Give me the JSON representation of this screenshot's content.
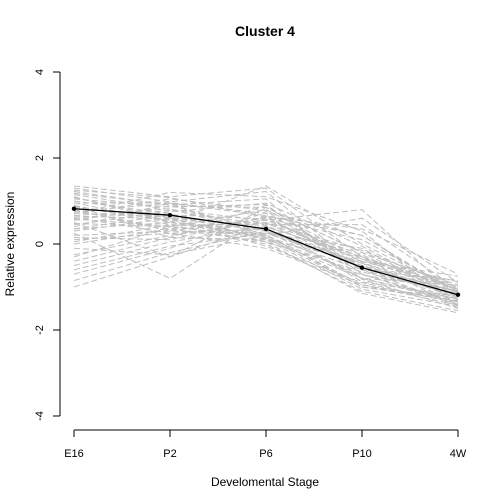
{
  "chart_data": {
    "type": "line",
    "title": "Cluster 4",
    "xlabel": "Develomental Stage",
    "ylabel": "Relative expression",
    "categories": [
      "E16",
      "P2",
      "P6",
      "P10",
      "4W"
    ],
    "ylim": [
      -4,
      4
    ],
    "yticks": [
      -4,
      -2,
      0,
      2,
      4
    ],
    "grid": false,
    "legend": "none",
    "colors": {
      "background_profiles": "#bebebe",
      "centroid": "#000000"
    },
    "series": [
      {
        "values": [
          0.82,
          0.67,
          0.35,
          -0.55,
          -1.18
        ]
      }
    ],
    "background_profiles": [
      [
        1.3,
        0.98,
        1.22,
        -0.6,
        -1.42
      ],
      [
        1.18,
        0.91,
        1.05,
        -0.82,
        -1.5
      ],
      [
        1.05,
        0.86,
        0.92,
        -0.7,
        -1.35
      ],
      [
        0.95,
        0.96,
        0.71,
        -0.42,
        -1.28
      ],
      [
        1.25,
        1.08,
        0.62,
        -0.51,
        -1.2
      ],
      [
        0.88,
        0.55,
        0.48,
        -0.3,
        -1.05
      ],
      [
        0.72,
        0.62,
        0.3,
        -0.55,
        -1.1
      ],
      [
        0.6,
        0.78,
        0.44,
        -0.88,
        -1.22
      ],
      [
        1.1,
        0.52,
        0.2,
        -0.95,
        -1.32
      ],
      [
        0.48,
        0.4,
        0.15,
        -0.72,
        -1.08
      ],
      [
        0.35,
        0.68,
        0.58,
        -0.4,
        -1.0
      ],
      [
        0.78,
        0.35,
        0.05,
        -0.65,
        -1.15
      ],
      [
        1.0,
        0.7,
        0.1,
        -1.05,
        -1.45
      ],
      [
        0.55,
        0.88,
        0.85,
        -0.2,
        -1.25
      ],
      [
        0.9,
        0.45,
        0.38,
        -0.8,
        -0.95
      ],
      [
        0.2,
        0.3,
        0.25,
        -0.5,
        -1.12
      ],
      [
        0.65,
        0.58,
        -0.05,
        -0.9,
        -1.38
      ],
      [
        1.15,
        0.8,
        0.55,
        -0.25,
        -1.3
      ],
      [
        0.4,
        0.95,
        0.66,
        -0.6,
        -1.18
      ],
      [
        0.85,
        0.62,
        0.42,
        -0.35,
        -0.88
      ],
      [
        0.1,
        0.25,
        0.35,
        -0.45,
        -1.05
      ],
      [
        0.7,
        1.05,
        0.78,
        -0.7,
        -1.4
      ],
      [
        0.96,
        0.5,
        0.18,
        -0.6,
        -1.2
      ],
      [
        0.3,
        0.6,
        0.12,
        -0.8,
        -1.28
      ],
      [
        1.22,
        0.9,
        0.3,
        -0.45,
        -1.35
      ],
      [
        0.58,
        0.42,
        0.5,
        -0.15,
        -1.0
      ],
      [
        0.45,
        0.75,
        0.95,
        -0.05,
        -1.22
      ],
      [
        1.35,
        1.1,
        1.3,
        -0.3,
        -1.5
      ],
      [
        0.8,
        0.3,
        0.6,
        0.1,
        -1.1
      ],
      [
        0.66,
        0.82,
        0.22,
        -1.0,
        -1.32
      ],
      [
        -0.25,
        0.2,
        0.5,
        -0.55,
        -1.1
      ],
      [
        -0.5,
        0.05,
        0.4,
        -0.3,
        -1.0
      ],
      [
        -0.7,
        -0.1,
        0.75,
        0.2,
        -1.2
      ],
      [
        -0.85,
        -0.2,
        0.3,
        -0.8,
        -1.35
      ],
      [
        -1.0,
        -0.3,
        0.45,
        0.45,
        -1.05
      ],
      [
        -0.4,
        0.15,
        0.1,
        -0.4,
        -0.75
      ],
      [
        -0.1,
        -0.25,
        0.2,
        0.6,
        -0.9
      ],
      [
        0.0,
        0.35,
        0.55,
        0.8,
        -1.25
      ],
      [
        0.25,
        -0.8,
        0.65,
        0.35,
        -0.7
      ],
      [
        0.5,
        -0.3,
        0.85,
        -0.2,
        -0.95
      ],
      [
        0.15,
        0.1,
        0.65,
        0.2,
        -1.15
      ],
      [
        -0.6,
        -0.05,
        0.25,
        -0.1,
        -1.3
      ],
      [
        0.7,
        1.2,
        1.1,
        0.3,
        -1.45
      ],
      [
        0.35,
        0.5,
        1.35,
        0.0,
        -1.1
      ],
      [
        0.9,
        0.15,
        0.9,
        -0.6,
        -0.85
      ],
      [
        0.05,
        0.45,
        0.0,
        -1.1,
        -1.55
      ],
      [
        0.62,
        0.25,
        -0.1,
        -0.95,
        -1.42
      ],
      [
        1.08,
        0.6,
        0.05,
        -1.15,
        -1.6
      ],
      [
        0.75,
        0.95,
        0.15,
        -1.0,
        -1.25
      ],
      [
        -0.3,
        0.4,
        0.8,
        -0.35,
        -1.05
      ]
    ]
  }
}
